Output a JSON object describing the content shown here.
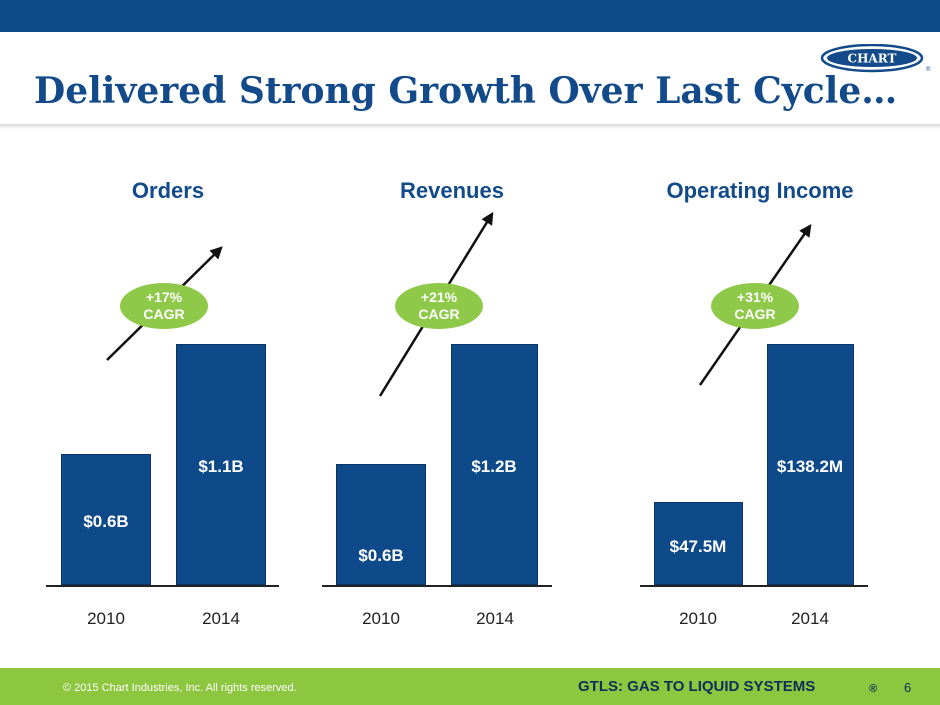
{
  "slide": {
    "title": "Delivered Strong Growth Over Last Cycle…",
    "page_number": "6",
    "copyright": "© 2015 Chart Industries, Inc. All rights reserved.",
    "tagline": "GTLS: GAS TO LIQUID SYSTEMS",
    "registered_mark": "®",
    "logo_text": "CHART",
    "colors": {
      "band": "#0e4a8a",
      "title": "#134b8a",
      "bar": "#0e4a8a",
      "cagr_bubble": "#8fc94a",
      "footer": "#8dc63f"
    }
  },
  "chart_data": [
    {
      "type": "bar",
      "title": "Orders",
      "categories": [
        "2010",
        "2014"
      ],
      "values": [
        0.6,
        1.1
      ],
      "value_labels": [
        "$0.6B",
        "$1.1B"
      ],
      "unit": "$B",
      "ylim": [
        0,
        1.1
      ],
      "cagr": {
        "line1": "+17%",
        "line2": "CAGR"
      }
    },
    {
      "type": "bar",
      "title": "Revenues",
      "categories": [
        "2010",
        "2014"
      ],
      "values": [
        0.6,
        1.2
      ],
      "value_labels": [
        "$0.6B",
        "$1.2B"
      ],
      "unit": "$B",
      "ylim": [
        0,
        1.2
      ],
      "cagr": {
        "line1": "+21%",
        "line2": "CAGR"
      }
    },
    {
      "type": "bar",
      "title": "Operating Income",
      "categories": [
        "2010",
        "2014"
      ],
      "values": [
        47.5,
        138.2
      ],
      "value_labels": [
        "$47.5M",
        "$138.2M"
      ],
      "unit": "$M",
      "ylim": [
        0,
        138.2
      ],
      "cagr": {
        "line1": "+31%",
        "line2": "CAGR"
      }
    }
  ]
}
